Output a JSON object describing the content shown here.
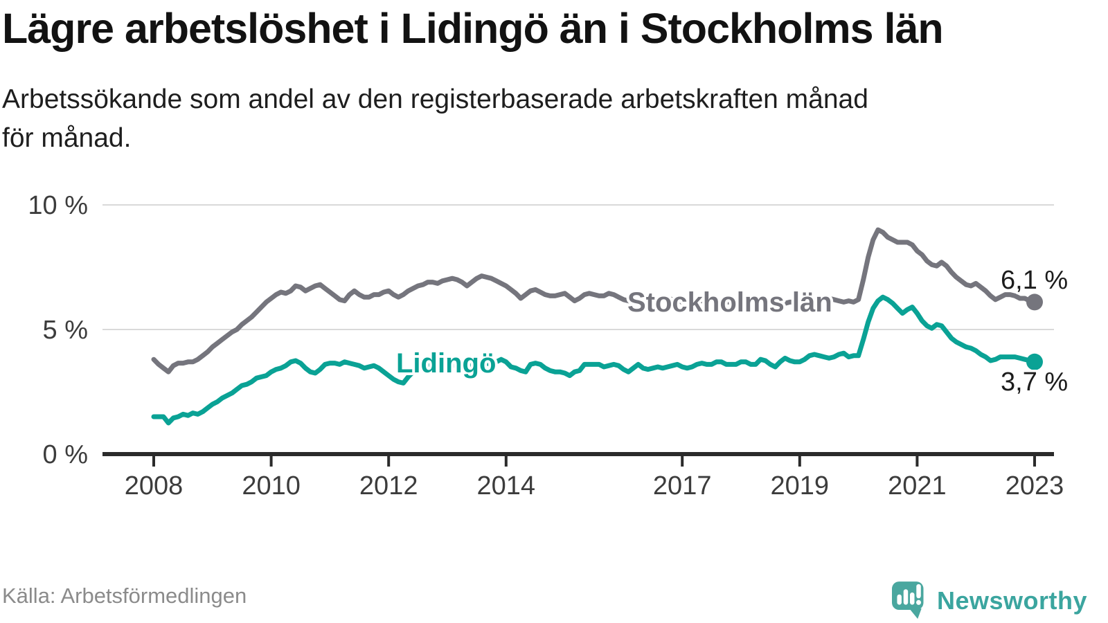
{
  "header": {
    "title": "Lägre arbetslöshet i Lidingö än i Stockholms län",
    "subtitle_line1": "Arbetssökande som andel av den registerbaserade arbetskraften månad",
    "subtitle_line2": "för månad."
  },
  "footer": {
    "source": "Källa: Arbetsförmedlingen",
    "brand": "Newsworthy",
    "logo_icon": "speech-bubble-with-bar-chart-and-exclamation"
  },
  "colors": {
    "stockholm_line": "#75757d",
    "lidingo_line": "#0aa295",
    "end_value_text": "#1c1c1c",
    "brand_teal": "#4aa79f",
    "grid": "#d9d9d9",
    "axis": "#2b2b2b"
  },
  "chart_data": {
    "type": "line",
    "unit": "%",
    "x_start_year": 2008,
    "points_per_year": 12,
    "x_ticks": [
      2008,
      2010,
      2012,
      2014,
      2017,
      2019,
      2021,
      2023
    ],
    "y_ticks": [
      {
        "value": 0,
        "label": "0 %"
      },
      {
        "value": 5,
        "label": "5 %"
      },
      {
        "value": 10,
        "label": "10 %"
      }
    ],
    "ylim": [
      0,
      10.5
    ],
    "grid": "horizontal-only",
    "legend_position": "inline-labels-on-lines",
    "series": [
      {
        "name": "Stockholms län",
        "color": "#75757d",
        "end_label": "6,1 %",
        "end_value": 6.1,
        "values": [
          3.8,
          3.6,
          3.45,
          3.3,
          3.55,
          3.65,
          3.65,
          3.7,
          3.7,
          3.8,
          3.95,
          4.1,
          4.3,
          4.45,
          4.6,
          4.75,
          4.9,
          5.0,
          5.2,
          5.35,
          5.5,
          5.7,
          5.9,
          6.1,
          6.25,
          6.4,
          6.5,
          6.45,
          6.55,
          6.75,
          6.7,
          6.55,
          6.65,
          6.75,
          6.8,
          6.65,
          6.5,
          6.35,
          6.2,
          6.15,
          6.4,
          6.55,
          6.4,
          6.3,
          6.3,
          6.4,
          6.4,
          6.5,
          6.55,
          6.4,
          6.3,
          6.4,
          6.55,
          6.65,
          6.75,
          6.8,
          6.9,
          6.9,
          6.85,
          6.95,
          7.0,
          7.05,
          7.0,
          6.9,
          6.75,
          6.9,
          7.05,
          7.15,
          7.1,
          7.05,
          6.95,
          6.85,
          6.75,
          6.6,
          6.45,
          6.25,
          6.4,
          6.55,
          6.6,
          6.5,
          6.4,
          6.35,
          6.35,
          6.4,
          6.45,
          6.3,
          6.15,
          6.25,
          6.4,
          6.45,
          6.4,
          6.35,
          6.35,
          6.45,
          6.4,
          6.3,
          6.2,
          6.15,
          6.1,
          6.2,
          6.3,
          6.25,
          6.2,
          6.15,
          6.2,
          6.25,
          6.2,
          6.15,
          6.1,
          6.1,
          6.15,
          6.2,
          6.15,
          6.2,
          6.25,
          6.2,
          6.15,
          6.1,
          6.1,
          6.15,
          6.1,
          6.05,
          6.0,
          6.05,
          6.1,
          6.15,
          6.1,
          6.05,
          6.0,
          6.05,
          6.1,
          6.1,
          6.1,
          6.15,
          6.1,
          6.1,
          6.15,
          6.2,
          6.25,
          6.2,
          6.15,
          6.1,
          6.15,
          6.1,
          6.2,
          7.0,
          7.9,
          8.6,
          9.0,
          8.9,
          8.7,
          8.6,
          8.5,
          8.5,
          8.5,
          8.4,
          8.15,
          8.0,
          7.75,
          7.6,
          7.55,
          7.7,
          7.55,
          7.3,
          7.1,
          6.95,
          6.8,
          6.75,
          6.85,
          6.7,
          6.55,
          6.35,
          6.2,
          6.3,
          6.4,
          6.4,
          6.35,
          6.25,
          6.25,
          6.15,
          6.1
        ]
      },
      {
        "name": "Lidingö",
        "color": "#0aa295",
        "end_label": "3,7 %",
        "end_value": 3.7,
        "values": [
          1.5,
          1.5,
          1.5,
          1.25,
          1.45,
          1.5,
          1.6,
          1.55,
          1.65,
          1.6,
          1.7,
          1.85,
          2.0,
          2.1,
          2.25,
          2.35,
          2.45,
          2.6,
          2.75,
          2.8,
          2.9,
          3.05,
          3.1,
          3.15,
          3.3,
          3.4,
          3.45,
          3.55,
          3.7,
          3.75,
          3.65,
          3.45,
          3.3,
          3.25,
          3.4,
          3.6,
          3.65,
          3.65,
          3.6,
          3.7,
          3.65,
          3.6,
          3.55,
          3.45,
          3.5,
          3.55,
          3.45,
          3.3,
          3.15,
          3.0,
          2.9,
          2.85,
          3.1,
          3.3,
          3.45,
          3.5,
          3.55,
          3.6,
          3.55,
          3.5,
          3.5,
          3.55,
          3.6,
          3.6,
          3.55,
          3.6,
          3.65,
          3.7,
          3.65,
          3.6,
          3.7,
          3.8,
          3.7,
          3.5,
          3.45,
          3.35,
          3.3,
          3.6,
          3.65,
          3.6,
          3.45,
          3.35,
          3.3,
          3.3,
          3.25,
          3.15,
          3.3,
          3.35,
          3.6,
          3.6,
          3.6,
          3.6,
          3.5,
          3.55,
          3.6,
          3.55,
          3.4,
          3.3,
          3.45,
          3.6,
          3.45,
          3.4,
          3.45,
          3.5,
          3.45,
          3.5,
          3.55,
          3.6,
          3.5,
          3.45,
          3.5,
          3.6,
          3.65,
          3.6,
          3.6,
          3.7,
          3.7,
          3.6,
          3.6,
          3.6,
          3.7,
          3.7,
          3.6,
          3.6,
          3.8,
          3.75,
          3.6,
          3.5,
          3.7,
          3.85,
          3.75,
          3.7,
          3.7,
          3.8,
          3.95,
          4.0,
          3.95,
          3.9,
          3.85,
          3.9,
          4.0,
          4.05,
          3.9,
          3.95,
          3.95,
          4.6,
          5.3,
          5.85,
          6.15,
          6.3,
          6.2,
          6.05,
          5.85,
          5.65,
          5.8,
          5.9,
          5.65,
          5.35,
          5.15,
          5.05,
          5.2,
          5.15,
          4.9,
          4.65,
          4.5,
          4.4,
          4.3,
          4.25,
          4.15,
          4.0,
          3.9,
          3.75,
          3.8,
          3.9,
          3.9,
          3.9,
          3.9,
          3.85,
          3.8,
          3.75,
          3.7
        ]
      }
    ]
  }
}
